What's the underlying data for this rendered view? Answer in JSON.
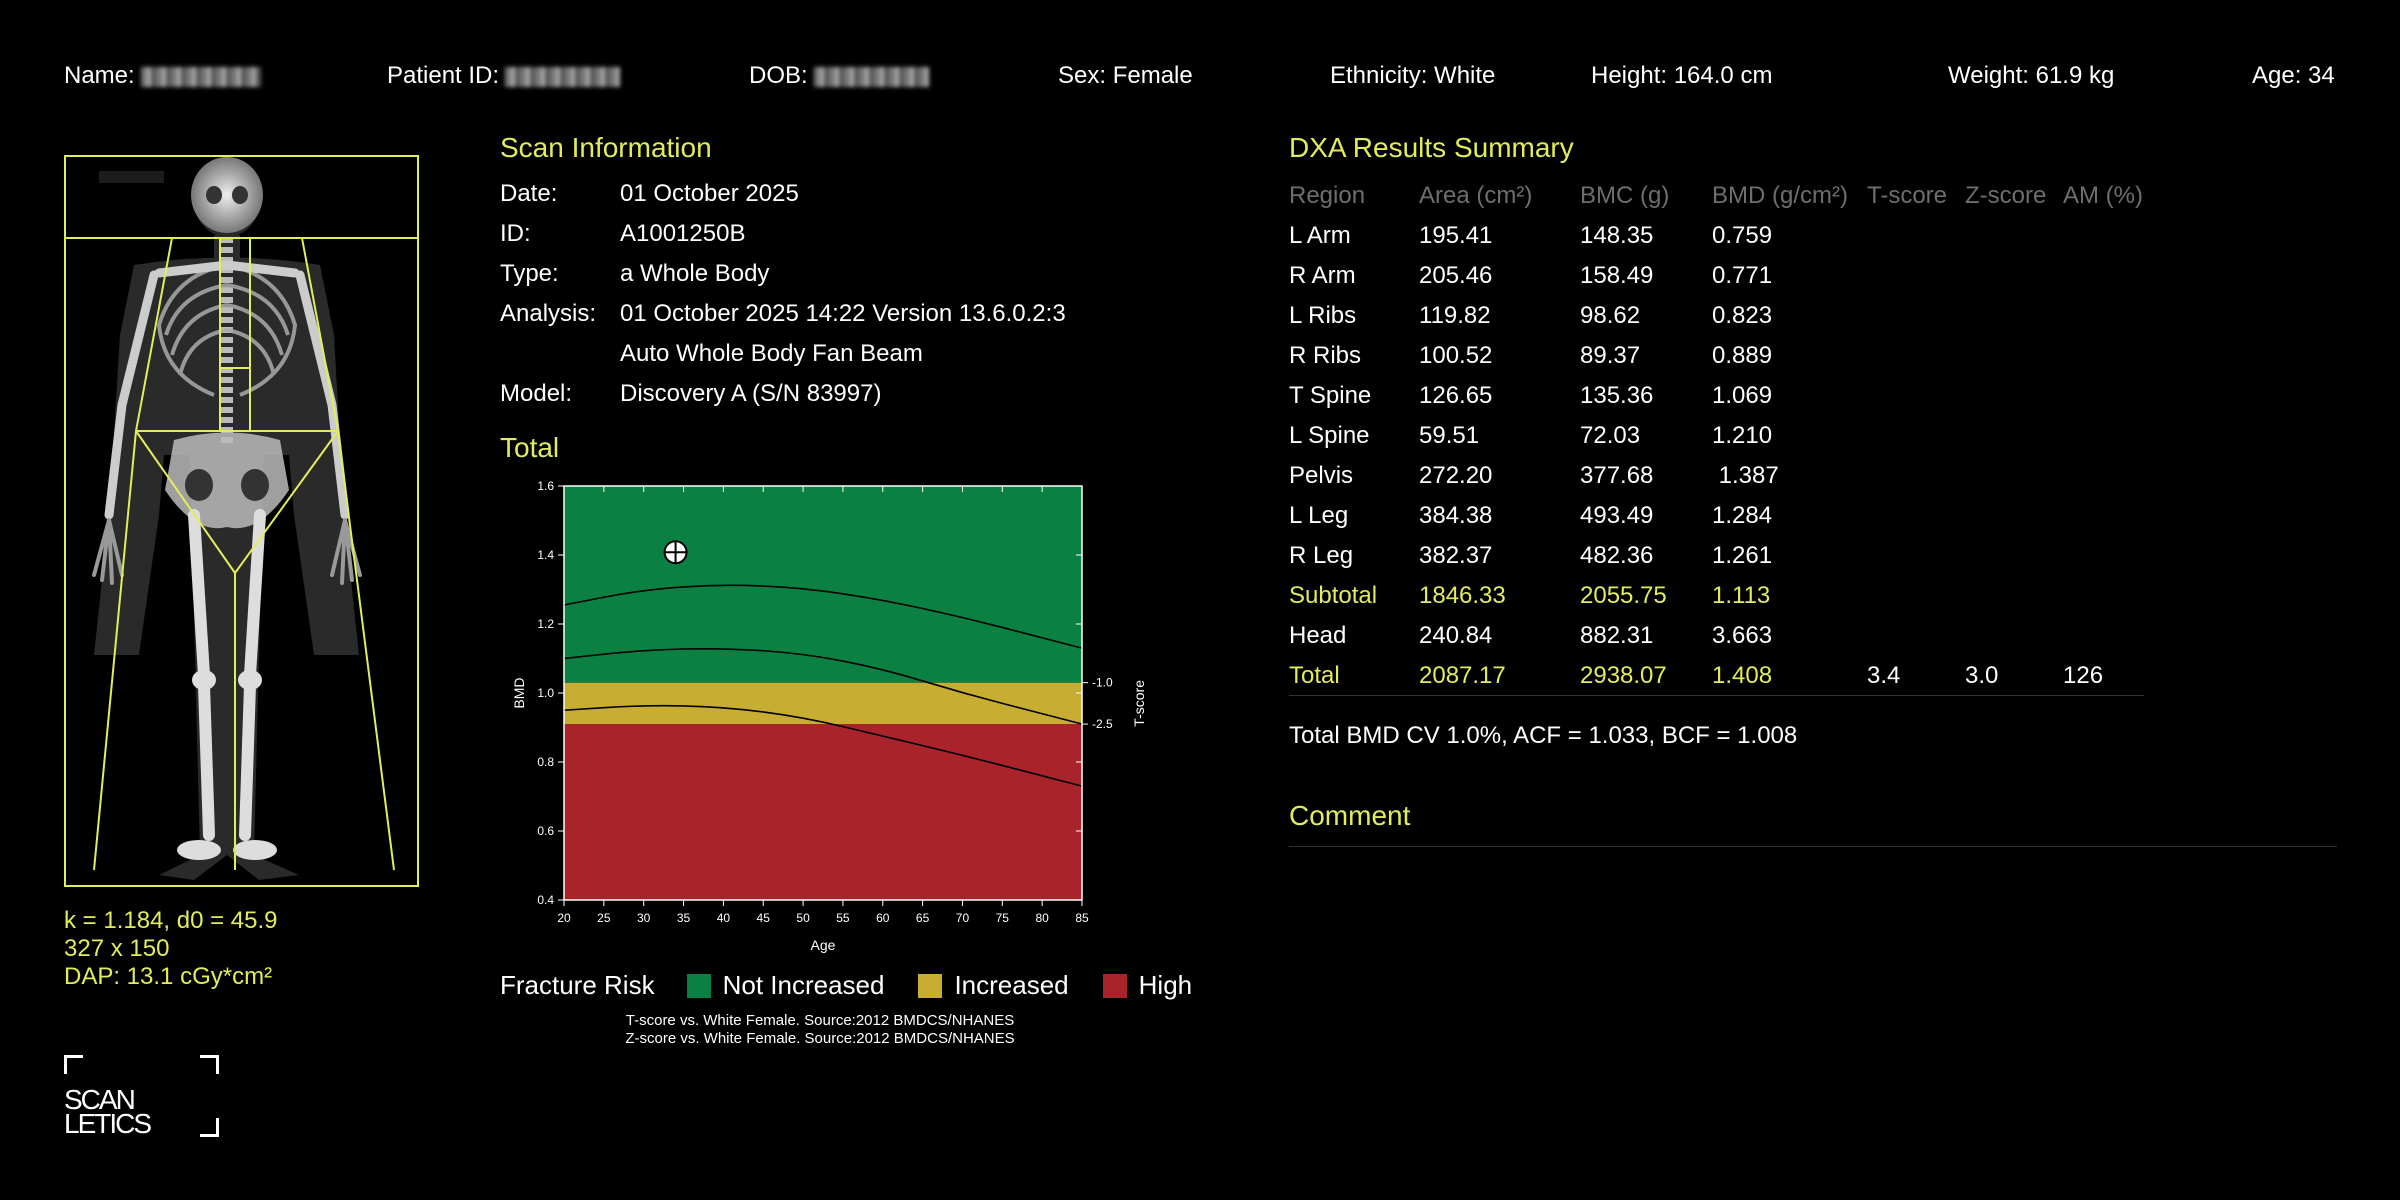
{
  "header": {
    "name_label": "Name:",
    "patient_id_label": "Patient ID:",
    "dob_label": "DOB:",
    "sex": "Sex: Female",
    "ethnicity": "Ethnicity: White",
    "height": "Height: 164.0 cm",
    "weight": "Weight: 61.9 kg",
    "age": "Age: 34"
  },
  "image_info": {
    "k_line": "k = 1.184, d0 = 45.9",
    "size_line": "327 x 150",
    "dap_line": "DAP: 13.1 cGy*cm²"
  },
  "logo": {
    "line1": "SCAN",
    "line2": "LETICS"
  },
  "scan_info": {
    "title": "Scan Information",
    "date_label": "Date:",
    "date_value": "01 October 2025",
    "id_label": "ID:",
    "id_value": "A1001250B",
    "type_label": "Type:",
    "type_value": "a Whole Body",
    "analysis_label": "Analysis:",
    "analysis_value": "01 October 2025 14:22 Version 13.6.0.2:3",
    "analysis_value2": "Auto Whole Body Fan Beam",
    "model_label": "Model:",
    "model_value": "Discovery A (S/N 83997)"
  },
  "total_title": "Total",
  "chart_data": {
    "type": "scatter",
    "title": "Total",
    "xlabel": "Age",
    "ylabel": "BMD",
    "y2label": "T-score",
    "xlim": [
      20,
      85
    ],
    "ylim": [
      0.4,
      1.6
    ],
    "x_ticks": [
      20,
      25,
      30,
      35,
      40,
      45,
      50,
      55,
      60,
      65,
      70,
      75,
      80,
      85
    ],
    "y_ticks": [
      "0.4",
      "0.6",
      "0.8",
      "1.0",
      "1.2",
      "1.4",
      "1.6"
    ],
    "tscore_ticks": [
      {
        "label": "-1.0",
        "y": 1.03
      },
      {
        "label": "-2.5",
        "y": 0.91
      }
    ],
    "zones": [
      {
        "name": "High",
        "from": 0.4,
        "to": 0.91,
        "color": "#a8242a"
      },
      {
        "name": "Increased",
        "from": 0.91,
        "to": 1.03,
        "color": "#c8ad33"
      },
      {
        "name": "Not Increased",
        "from": 1.03,
        "to": 1.6,
        "color": "#0b8043"
      }
    ],
    "curves": [
      {
        "points": [
          [
            20,
            1.255
          ],
          [
            30,
            1.3
          ],
          [
            40,
            1.315
          ],
          [
            50,
            1.305
          ],
          [
            60,
            1.27
          ],
          [
            70,
            1.22
          ],
          [
            80,
            1.16
          ],
          [
            85,
            1.13
          ]
        ]
      },
      {
        "points": [
          [
            20,
            1.1
          ],
          [
            30,
            1.125
          ],
          [
            40,
            1.13
          ],
          [
            50,
            1.115
          ],
          [
            60,
            1.07
          ],
          [
            70,
            1.0
          ],
          [
            80,
            0.94
          ],
          [
            85,
            0.91
          ]
        ]
      },
      {
        "points": [
          [
            20,
            0.95
          ],
          [
            30,
            0.965
          ],
          [
            40,
            0.96
          ],
          [
            50,
            0.93
          ],
          [
            60,
            0.875
          ],
          [
            70,
            0.82
          ],
          [
            80,
            0.76
          ],
          [
            85,
            0.73
          ]
        ]
      }
    ],
    "patient_point": {
      "x": 34,
      "y": 1.408
    }
  },
  "legend": {
    "label": "Fracture Risk",
    "items": [
      {
        "label": "Not Increased",
        "color": "#0b8043"
      },
      {
        "label": "Increased",
        "color": "#c8ad33"
      },
      {
        "label": "High",
        "color": "#a8242a"
      }
    ]
  },
  "source_notes": {
    "tscore": "T-score vs. White Female. Source:2012 BMDCS/NHANES",
    "zscore": "Z-score vs. White Female. Source:2012 BMDCS/NHANES"
  },
  "dxa": {
    "title": "DXA Results Summary",
    "headers": [
      "Region",
      "Area (cm²)",
      "BMC (g)",
      "BMD (g/cm²)",
      "T-score",
      "Z-score",
      "AM (%)"
    ],
    "rows": [
      {
        "cells": [
          "L Arm",
          "195.41",
          "148.35",
          "0.759",
          "",
          "",
          ""
        ],
        "highlight": false
      },
      {
        "cells": [
          "R Arm",
          "205.46",
          "158.49",
          "0.771",
          "",
          "",
          ""
        ],
        "highlight": false
      },
      {
        "cells": [
          "L Ribs",
          "119.82",
          "98.62",
          "0.823",
          "",
          "",
          ""
        ],
        "highlight": false
      },
      {
        "cells": [
          "R Ribs",
          "100.52",
          "89.37",
          "0.889",
          "",
          "",
          ""
        ],
        "highlight": false
      },
      {
        "cells": [
          "T Spine",
          "126.65",
          "135.36",
          "1.069",
          "",
          "",
          ""
        ],
        "highlight": false
      },
      {
        "cells": [
          "L Spine",
          "59.51",
          "72.03",
          "1.210",
          "",
          "",
          ""
        ],
        "highlight": false
      },
      {
        "cells": [
          "Pelvis",
          "272.20",
          "377.68",
          " 1.387",
          "",
          "",
          ""
        ],
        "highlight": false
      },
      {
        "cells": [
          "L Leg",
          "384.38",
          "493.49",
          "1.284",
          "",
          "",
          ""
        ],
        "highlight": false
      },
      {
        "cells": [
          "R Leg",
          "382.37",
          "482.36",
          "1.261",
          "",
          "",
          ""
        ],
        "highlight": false
      },
      {
        "cells": [
          "Subtotal",
          "1846.33",
          "2055.75",
          "1.113",
          "",
          "",
          ""
        ],
        "highlight": true
      },
      {
        "cells": [
          "Head",
          "240.84",
          "882.31",
          "3.663",
          "",
          "",
          ""
        ],
        "highlight": false
      },
      {
        "cells": [
          "Total",
          "2087.17",
          "2938.07",
          "1.408",
          "3.4",
          "3.0",
          "126"
        ],
        "highlight": "partial"
      }
    ],
    "cv_line": "Total BMD CV 1.0%, ACF = 1.033, BCF = 1.008"
  },
  "comment_title": "Comment"
}
